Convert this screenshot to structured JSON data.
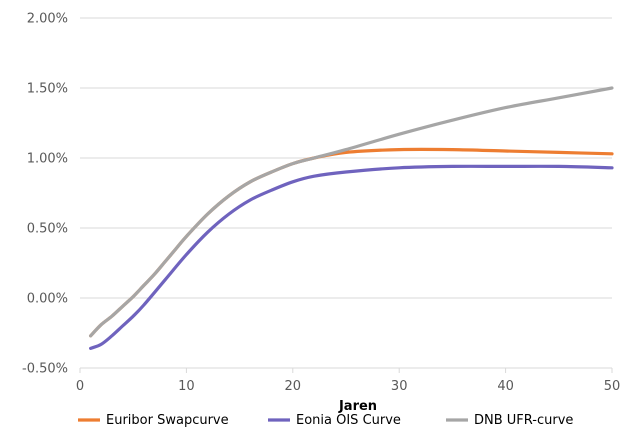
{
  "chart_data": {
    "type": "line",
    "xlabel": "Jaren",
    "ylabel": "",
    "xlim": [
      0,
      50
    ],
    "ylim": [
      -0.5,
      2.0
    ],
    "y_unit": "%",
    "x_ticks": [
      0,
      10,
      20,
      30,
      40,
      50
    ],
    "y_ticks": [
      -0.5,
      0.0,
      0.5,
      1.0,
      1.5,
      2.0
    ],
    "x_tick_labels": [
      "0",
      "10",
      "20",
      "30",
      "40",
      "50"
    ],
    "y_tick_labels": [
      "-0.50%",
      "0.00%",
      "0.50%",
      "1.00%",
      "1.50%",
      "2.00%"
    ],
    "grid": "horizontal",
    "legend_position": "bottom",
    "series": [
      {
        "name": "Euribor Swapcurve",
        "color": "#ED7D31",
        "x": [
          1,
          2,
          3,
          4,
          5,
          6,
          7,
          8,
          9,
          10,
          12,
          14,
          16,
          18,
          20,
          22,
          25,
          30,
          35,
          40,
          45,
          50
        ],
        "y": [
          -0.27,
          -0.19,
          -0.13,
          -0.06,
          0.01,
          0.09,
          0.17,
          0.26,
          0.35,
          0.44,
          0.6,
          0.73,
          0.83,
          0.9,
          0.96,
          1.0,
          1.04,
          1.06,
          1.06,
          1.05,
          1.04,
          1.03
        ]
      },
      {
        "name": "Eonia OIS Curve",
        "color": "#6F63BE",
        "x": [
          1,
          2,
          3,
          4,
          5,
          6,
          8,
          10,
          12,
          14,
          16,
          18,
          20,
          22,
          25,
          30,
          35,
          40,
          45,
          50
        ],
        "y": [
          -0.36,
          -0.33,
          -0.27,
          -0.2,
          -0.13,
          -0.05,
          0.13,
          0.31,
          0.47,
          0.6,
          0.7,
          0.77,
          0.83,
          0.87,
          0.9,
          0.93,
          0.94,
          0.94,
          0.94,
          0.93
        ]
      },
      {
        "name": "DNB UFR-curve",
        "color": "#A6A6A6",
        "x": [
          1,
          2,
          3,
          4,
          5,
          6,
          7,
          8,
          9,
          10,
          12,
          14,
          16,
          18,
          20,
          22,
          25,
          30,
          35,
          40,
          45,
          50
        ],
        "y": [
          -0.27,
          -0.19,
          -0.13,
          -0.06,
          0.01,
          0.09,
          0.17,
          0.26,
          0.35,
          0.44,
          0.6,
          0.73,
          0.83,
          0.9,
          0.96,
          1.0,
          1.06,
          1.17,
          1.27,
          1.36,
          1.43,
          1.5
        ]
      }
    ]
  }
}
